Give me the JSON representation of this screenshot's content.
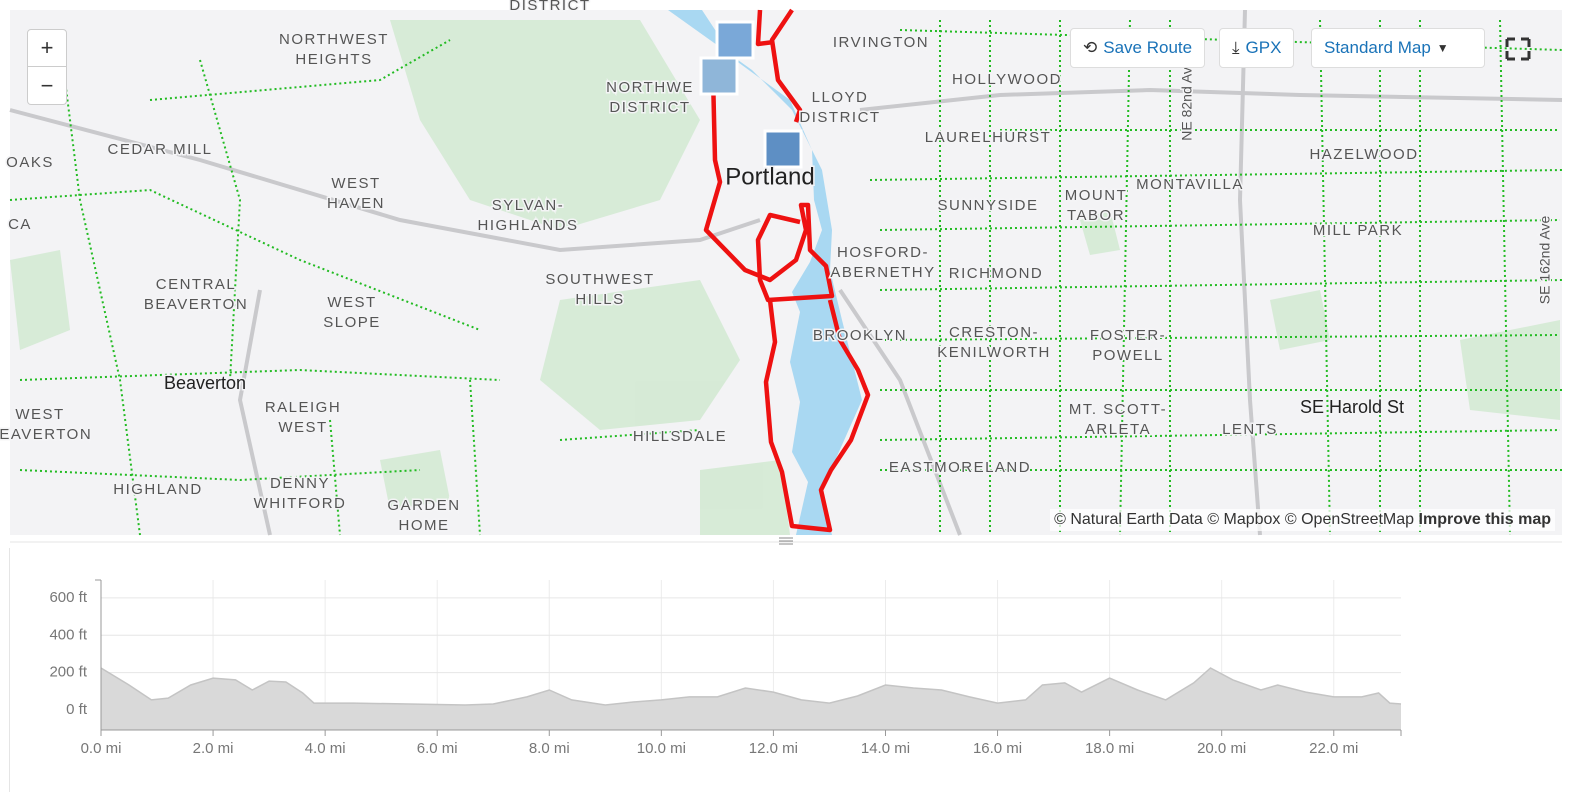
{
  "map": {
    "controls": {
      "zoom_in": "+",
      "zoom_out": "−"
    },
    "toolbar": {
      "save_route": "Save Route",
      "gpx": "GPX",
      "map_style": "Standard Map"
    },
    "labels": [
      [
        "NORTHWEST",
        "HEIGHTS"
      ],
      [
        "IRVINGTON"
      ],
      [
        "HOLLYWOOD"
      ],
      [
        "NORTHWE",
        "DISTRICT"
      ],
      [
        "LLOYD",
        "DISTRICT"
      ],
      [
        "LAURELHURST"
      ],
      [
        "CEDAR MILL"
      ],
      [
        "HAZELWOOD"
      ],
      [
        "OAKS"
      ],
      [
        "Portland"
      ],
      [
        "MONTAVILLA"
      ],
      [
        "WEST",
        "HAVEN"
      ],
      [
        "SYLVAN-",
        "HIGHLANDS"
      ],
      [
        "SUNNYSIDE"
      ],
      [
        "MOUNT",
        "TABOR"
      ],
      [
        "CA"
      ],
      [
        "MILL PARK"
      ],
      [
        "HOSFORD-",
        "ABERNETHY"
      ],
      [
        "RICHMOND"
      ],
      [
        "SOUTHWEST",
        "HILLS"
      ],
      [
        "CENTRAL",
        "BEAVERTON"
      ],
      [
        "WEST",
        "SLOPE"
      ],
      [
        "BROOKLYN"
      ],
      [
        "CRESTON-",
        "KENILWORTH"
      ],
      [
        "FOSTER-",
        "POWELL"
      ],
      [
        "Beaverton"
      ],
      [
        "RALEIGH",
        "WEST"
      ],
      [
        "WEST",
        "BEAVERTON"
      ],
      [
        "MT. SCOTT-",
        "ARLETA"
      ],
      [
        "SE Harold St"
      ],
      [
        "LENTS"
      ],
      [
        "HILLSDALE"
      ],
      [
        "EASTMORELAND"
      ],
      [
        "HIGHLAND"
      ],
      [
        "DENNY",
        "WHITFORD"
      ],
      [
        "GARDEN",
        "HOME"
      ],
      [
        "NE 82nd Ave"
      ],
      [
        "SE 162nd Ave"
      ],
      [
        "DISTRICT"
      ]
    ],
    "attribution": "© Natural Earth Data © Mapbox © OpenStreetMap",
    "improve": "Improve this map"
  },
  "chart_data": {
    "type": "area",
    "x": [
      0,
      0.5,
      0.9,
      1.2,
      1.6,
      2.0,
      2.4,
      2.7,
      3.0,
      3.3,
      3.6,
      3.8,
      4.5,
      5.5,
      6.5,
      7.0,
      7.6,
      8.0,
      8.4,
      9.0,
      9.5,
      10.0,
      10.5,
      11.0,
      11.5,
      12.0,
      12.5,
      13.0,
      13.5,
      14.0,
      14.5,
      15.0,
      15.5,
      16.0,
      16.5,
      16.8,
      17.2,
      17.5,
      18.0,
      18.5,
      19.0,
      19.5,
      19.8,
      20.2,
      20.7,
      21.0,
      21.5,
      22.0,
      22.5,
      22.8,
      23.0,
      23.2
    ],
    "values": [
      225,
      134,
      54,
      64,
      134,
      171,
      161,
      107,
      155,
      150,
      91,
      37,
      37,
      32,
      27,
      32,
      70,
      107,
      54,
      27,
      43,
      54,
      70,
      70,
      118,
      96,
      54,
      37,
      75,
      134,
      118,
      107,
      70,
      37,
      54,
      134,
      145,
      96,
      171,
      107,
      54,
      145,
      225,
      161,
      107,
      134,
      96,
      70,
      70,
      91,
      37,
      32
    ],
    "color": "#d9d9d9",
    "xlim": [
      0,
      23.2
    ],
    "ylim": [
      -107,
      696
    ],
    "xticks": [
      {
        "value": 0,
        "label": "0.0 mi"
      },
      {
        "value": 2,
        "label": "2.0 mi"
      },
      {
        "value": 4,
        "label": "4.0 mi"
      },
      {
        "value": 6,
        "label": "6.0 mi"
      },
      {
        "value": 8,
        "label": "8.0 mi"
      },
      {
        "value": 10,
        "label": "10.0 mi"
      },
      {
        "value": 12,
        "label": "12.0 mi"
      },
      {
        "value": 14,
        "label": "14.0 mi"
      },
      {
        "value": 16,
        "label": "16.0 mi"
      },
      {
        "value": 18,
        "label": "18.0 mi"
      },
      {
        "value": 20,
        "label": "20.0 mi"
      },
      {
        "value": 22,
        "label": "22.0 mi"
      }
    ],
    "yticks": [
      {
        "value": 0,
        "label": "0 ft"
      },
      {
        "value": 200,
        "label": "200 ft"
      },
      {
        "value": 400,
        "label": "400 ft"
      },
      {
        "value": 600,
        "label": "600 ft"
      }
    ],
    "grid": true
  }
}
